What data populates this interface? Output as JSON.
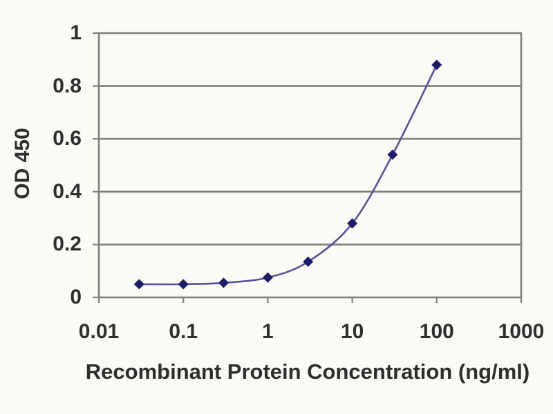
{
  "figure": {
    "background_color": "#fbfaf5",
    "grid_color": "#7f7f7f",
    "frame_color": "#7f7f7f",
    "line_color": "#54549c",
    "marker_color": "#1c1c6b",
    "marker_shape": "diamond",
    "text_color": "#2e2e2e"
  },
  "chart_data": {
    "type": "line",
    "title": "",
    "xlabel": "Recombinant Protein Concentration (ng/ml)",
    "ylabel": "OD 450",
    "x_scale": "log",
    "y_scale": "linear",
    "xlim": [
      0.01,
      1000
    ],
    "ylim": [
      0,
      1
    ],
    "x_ticks": [
      0.01,
      0.1,
      1,
      10,
      100,
      1000
    ],
    "x_tick_labels": [
      "0.01",
      "0.1",
      "1",
      "10",
      "100",
      "1000"
    ],
    "y_ticks": [
      0,
      0.2,
      0.4,
      0.6,
      0.8,
      1
    ],
    "y_tick_labels": [
      "0",
      "0.2",
      "0.4",
      "0.6",
      "0.8",
      "1"
    ],
    "grid": "horizontal-gridlines",
    "legend_position": "none",
    "series": [
      {
        "name": "OD 450",
        "x": [
          0.03,
          0.1,
          0.3,
          1,
          3,
          10,
          30,
          100
        ],
        "y": [
          0.05,
          0.05,
          0.055,
          0.075,
          0.135,
          0.28,
          0.54,
          0.88
        ]
      }
    ]
  }
}
